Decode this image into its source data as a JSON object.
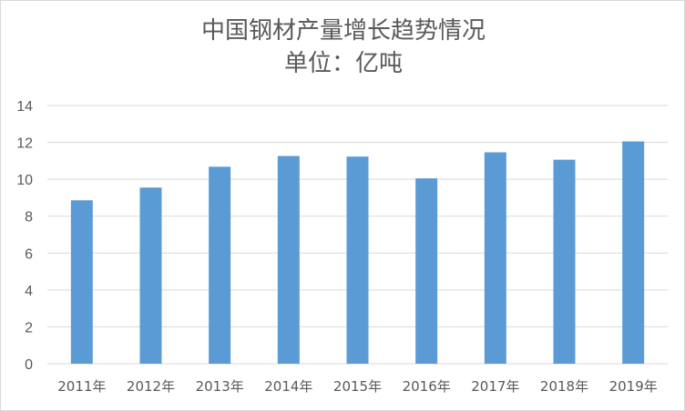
{
  "chart_data": {
    "type": "bar",
    "title": "中国钢材产量增长趋势情况",
    "subtitle": "单位：亿吨",
    "categories": [
      "2011年",
      "2012年",
      "2013年",
      "2014年",
      "2015年",
      "2016年",
      "2017年",
      "2018年",
      "2019年"
    ],
    "values": [
      8.86,
      9.55,
      10.68,
      11.26,
      11.23,
      10.05,
      11.46,
      11.06,
      12.05
    ],
    "ylim": [
      0,
      14
    ],
    "yticks": [
      0,
      2,
      4,
      6,
      8,
      10,
      12,
      14
    ],
    "grid": true,
    "bar_color": "#5b9bd5",
    "grid_color": "#d9d9d9",
    "text_color": "#595959"
  }
}
